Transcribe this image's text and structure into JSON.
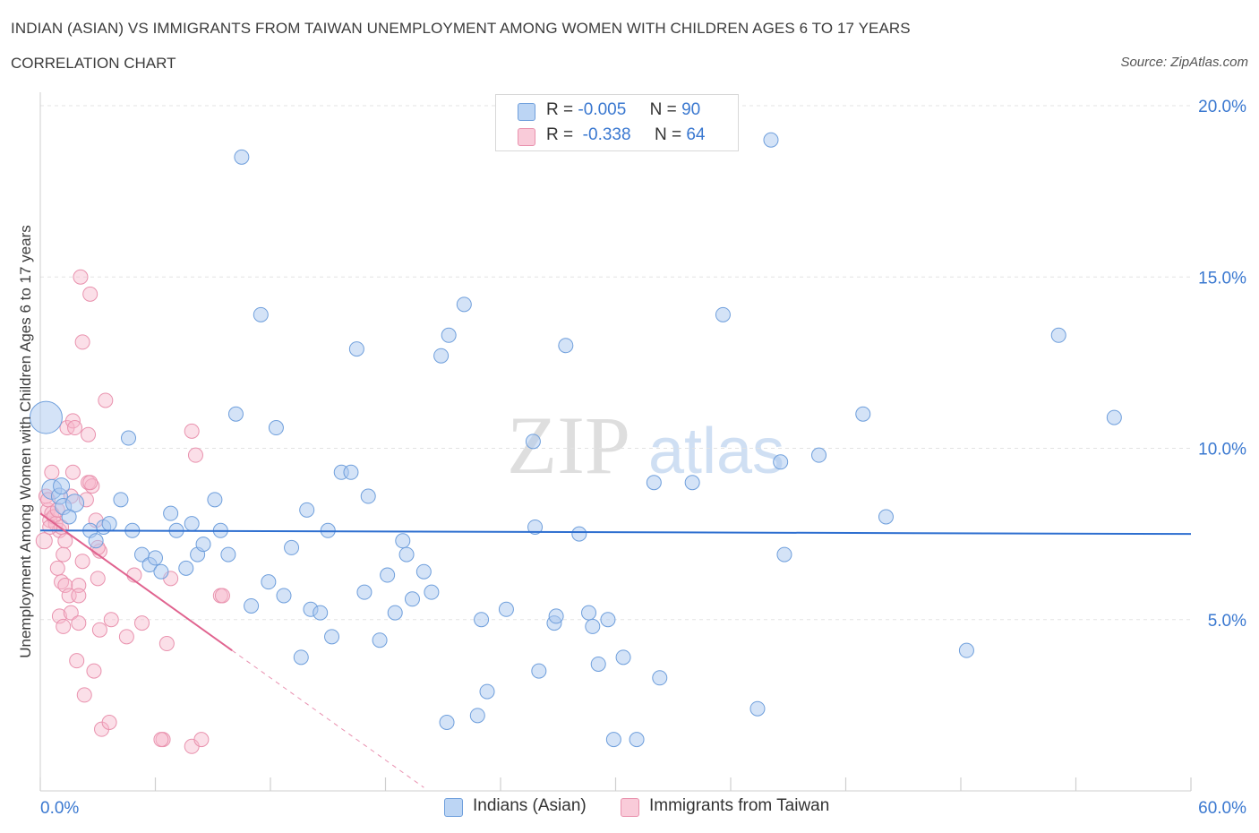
{
  "header": {
    "title": "INDIAN (ASIAN) VS IMMIGRANTS FROM TAIWAN UNEMPLOYMENT AMONG WOMEN WITH CHILDREN AGES 6 TO 17 YEARS",
    "subtitle": "CORRELATION CHART",
    "source": "Source: ZipAtlas.com"
  },
  "legend_top": {
    "rows": [
      {
        "r_label": "R =",
        "r_value": "-0.005",
        "n_label": "N =",
        "n_value": "90"
      },
      {
        "r_label": "R =",
        "r_value": "-0.338",
        "n_label": "N =",
        "n_value": "64"
      }
    ]
  },
  "legend_bottom": {
    "items": [
      "Indians (Asian)",
      "Immigrants from Taiwan"
    ]
  },
  "colors": {
    "blue_fill": "#a9c8ef",
    "blue_stroke": "#6f9fdc",
    "blue_line": "#2e6fd0",
    "pink_fill": "#f6b8cb",
    "pink_stroke": "#e992ae",
    "pink_line": "#e0638f",
    "axis_label": "#3a78d0",
    "grid": "#e3e3e3"
  },
  "chart_data": {
    "type": "scatter",
    "title": "INDIAN (ASIAN) VS IMMIGRANTS FROM TAIWAN UNEMPLOYMENT AMONG WOMEN WITH CHILDREN AGES 6 TO 17 YEARS",
    "xlabel": "",
    "ylabel": "Unemployment Among Women with Children Ages 6 to 17 years",
    "xlim": [
      0,
      60
    ],
    "ylim": [
      0,
      20
    ],
    "x_tick_labels": [
      "0.0%",
      "60.0%"
    ],
    "y_ticks": [
      5,
      10,
      15,
      20
    ],
    "y_tick_labels": [
      "5.0%",
      "10.0%",
      "15.0%",
      "20.0%"
    ],
    "watermark": [
      "ZIP",
      "atlas"
    ],
    "series": [
      {
        "name": "Indians (Asian)",
        "trend": {
          "x": [
            0,
            60
          ],
          "y": [
            7.6,
            7.5
          ]
        },
        "points": [
          [
            0.3,
            10.9,
            18
          ],
          [
            0.6,
            8.8,
            11
          ],
          [
            1.0,
            8.6,
            9
          ],
          [
            1.1,
            8.9,
            9
          ],
          [
            1.2,
            8.3,
            9
          ],
          [
            1.8,
            8.4,
            10
          ],
          [
            1.5,
            8.0,
            8
          ],
          [
            2.6,
            7.6,
            8
          ],
          [
            2.9,
            7.3,
            8
          ],
          [
            3.3,
            7.7,
            8
          ],
          [
            4.2,
            8.5,
            8
          ],
          [
            4.6,
            10.3,
            8
          ],
          [
            4.8,
            7.6,
            8
          ],
          [
            5.3,
            6.9,
            8
          ],
          [
            5.7,
            6.6,
            8
          ],
          [
            6.0,
            6.8,
            8
          ],
          [
            6.3,
            6.4,
            8
          ],
          [
            6.8,
            8.1,
            8
          ],
          [
            7.1,
            7.6,
            8
          ],
          [
            7.6,
            6.5,
            8
          ],
          [
            7.9,
            7.8,
            8
          ],
          [
            8.2,
            6.9,
            8
          ],
          [
            8.5,
            7.2,
            8
          ],
          [
            9.1,
            8.5,
            8
          ],
          [
            9.4,
            7.6,
            8
          ],
          [
            9.8,
            6.9,
            8
          ],
          [
            10.2,
            11.0,
            8
          ],
          [
            11.0,
            5.4,
            8
          ],
          [
            11.5,
            13.9,
            8
          ],
          [
            11.9,
            6.1,
            8
          ],
          [
            12.3,
            10.6,
            8
          ],
          [
            12.7,
            5.7,
            8
          ],
          [
            13.1,
            7.1,
            8
          ],
          [
            13.6,
            3.9,
            8
          ],
          [
            13.9,
            8.2,
            8
          ],
          [
            14.1,
            5.3,
            8
          ],
          [
            14.6,
            5.2,
            8
          ],
          [
            15.0,
            7.6,
            8
          ],
          [
            15.2,
            4.5,
            8
          ],
          [
            15.7,
            9.3,
            8
          ],
          [
            16.2,
            9.3,
            8
          ],
          [
            16.5,
            12.9,
            8
          ],
          [
            16.9,
            5.8,
            8
          ],
          [
            17.1,
            8.6,
            8
          ],
          [
            17.7,
            4.4,
            8
          ],
          [
            18.1,
            6.3,
            8
          ],
          [
            18.5,
            5.2,
            8
          ],
          [
            18.9,
            7.3,
            8
          ],
          [
            19.1,
            6.9,
            8
          ],
          [
            19.4,
            5.6,
            8
          ],
          [
            20.0,
            6.4,
            8
          ],
          [
            20.4,
            5.8,
            8
          ],
          [
            20.9,
            12.7,
            8
          ],
          [
            21.3,
            13.3,
            8
          ],
          [
            21.2,
            2.0,
            8
          ],
          [
            22.1,
            14.2,
            8
          ],
          [
            22.8,
            2.2,
            8
          ],
          [
            23.0,
            5.0,
            8
          ],
          [
            23.3,
            2.9,
            8
          ],
          [
            24.3,
            5.3,
            8
          ],
          [
            25.7,
            10.2,
            8
          ],
          [
            25.8,
            7.7,
            8
          ],
          [
            26.0,
            3.5,
            8
          ],
          [
            26.8,
            4.9,
            8
          ],
          [
            26.9,
            5.1,
            8
          ],
          [
            27.4,
            13.0,
            8
          ],
          [
            28.1,
            7.5,
            8
          ],
          [
            28.6,
            5.2,
            8
          ],
          [
            28.8,
            4.8,
            8
          ],
          [
            29.1,
            3.7,
            8
          ],
          [
            29.6,
            5.0,
            8
          ],
          [
            29.9,
            1.5,
            8
          ],
          [
            30.4,
            3.9,
            8
          ],
          [
            31.1,
            1.5,
            8
          ],
          [
            32.0,
            9.0,
            8
          ],
          [
            32.3,
            3.3,
            8
          ],
          [
            34.0,
            9.0,
            8
          ],
          [
            35.6,
            13.9,
            8
          ],
          [
            37.4,
            2.4,
            8
          ],
          [
            38.1,
            19.0,
            8
          ],
          [
            38.6,
            9.6,
            8
          ],
          [
            38.8,
            6.9,
            8
          ],
          [
            40.6,
            9.8,
            8
          ],
          [
            42.9,
            11.0,
            8
          ],
          [
            44.1,
            8.0,
            8
          ],
          [
            48.3,
            4.1,
            8
          ],
          [
            53.1,
            13.3,
            8
          ],
          [
            56.0,
            10.9,
            8
          ],
          [
            10.5,
            18.5,
            8
          ],
          [
            3.6,
            7.8,
            8
          ]
        ]
      },
      {
        "name": "Immigrants from Taiwan",
        "trend": {
          "x": [
            0,
            10
          ],
          "y": [
            8.1,
            4.1
          ]
        },
        "trend_extended": {
          "x": [
            10,
            20
          ],
          "y": [
            4.1,
            0.1
          ]
        },
        "points": [
          [
            0.2,
            7.3,
            9
          ],
          [
            0.3,
            8.6,
            8
          ],
          [
            0.4,
            8.2,
            8
          ],
          [
            0.5,
            7.9,
            8
          ],
          [
            0.6,
            8.1,
            8
          ],
          [
            0.6,
            9.3,
            8
          ],
          [
            0.7,
            8.0,
            8
          ],
          [
            0.8,
            7.8,
            8
          ],
          [
            0.9,
            6.5,
            8
          ],
          [
            1.0,
            7.6,
            8
          ],
          [
            1.0,
            5.1,
            8
          ],
          [
            1.1,
            6.1,
            8
          ],
          [
            1.2,
            4.8,
            8
          ],
          [
            1.2,
            6.9,
            8
          ],
          [
            1.3,
            6.0,
            8
          ],
          [
            1.3,
            7.3,
            8
          ],
          [
            1.4,
            10.6,
            8
          ],
          [
            1.5,
            5.7,
            8
          ],
          [
            1.6,
            5.2,
            8
          ],
          [
            1.6,
            8.6,
            8
          ],
          [
            1.7,
            10.8,
            8
          ],
          [
            1.7,
            9.3,
            8
          ],
          [
            1.8,
            10.6,
            8
          ],
          [
            1.9,
            3.8,
            8
          ],
          [
            2.0,
            4.9,
            8
          ],
          [
            2.0,
            6.0,
            8
          ],
          [
            2.0,
            5.7,
            8
          ],
          [
            2.1,
            15.0,
            8
          ],
          [
            2.2,
            13.1,
            8
          ],
          [
            2.2,
            6.7,
            8
          ],
          [
            2.3,
            2.8,
            8
          ],
          [
            2.4,
            8.5,
            8
          ],
          [
            2.5,
            10.4,
            8
          ],
          [
            2.5,
            9.0,
            8
          ],
          [
            2.6,
            14.5,
            8
          ],
          [
            2.7,
            8.9,
            8
          ],
          [
            2.8,
            3.5,
            8
          ],
          [
            2.9,
            7.9,
            8
          ],
          [
            3.0,
            6.2,
            8
          ],
          [
            3.1,
            7.0,
            8
          ],
          [
            3.1,
            4.7,
            8
          ],
          [
            3.2,
            1.8,
            8
          ],
          [
            3.4,
            11.4,
            8
          ],
          [
            3.6,
            2.0,
            8
          ],
          [
            3.7,
            5.0,
            8
          ],
          [
            4.5,
            4.5,
            8
          ],
          [
            4.9,
            6.3,
            8
          ],
          [
            5.3,
            4.9,
            8
          ],
          [
            6.4,
            1.5,
            8
          ],
          [
            6.6,
            4.3,
            8
          ],
          [
            6.8,
            6.2,
            8
          ],
          [
            7.9,
            1.3,
            8
          ],
          [
            7.9,
            10.5,
            8
          ],
          [
            8.1,
            9.8,
            8
          ],
          [
            8.4,
            1.5,
            8
          ],
          [
            9.4,
            5.7,
            8
          ],
          [
            9.5,
            5.7,
            8
          ],
          [
            6.3,
            1.5,
            8
          ],
          [
            0.4,
            8.5,
            8
          ],
          [
            1.1,
            7.7,
            8
          ],
          [
            0.9,
            8.2,
            8
          ],
          [
            0.5,
            7.7,
            8
          ],
          [
            2.6,
            9.0,
            8
          ],
          [
            3.0,
            7.1,
            8
          ]
        ]
      }
    ]
  }
}
